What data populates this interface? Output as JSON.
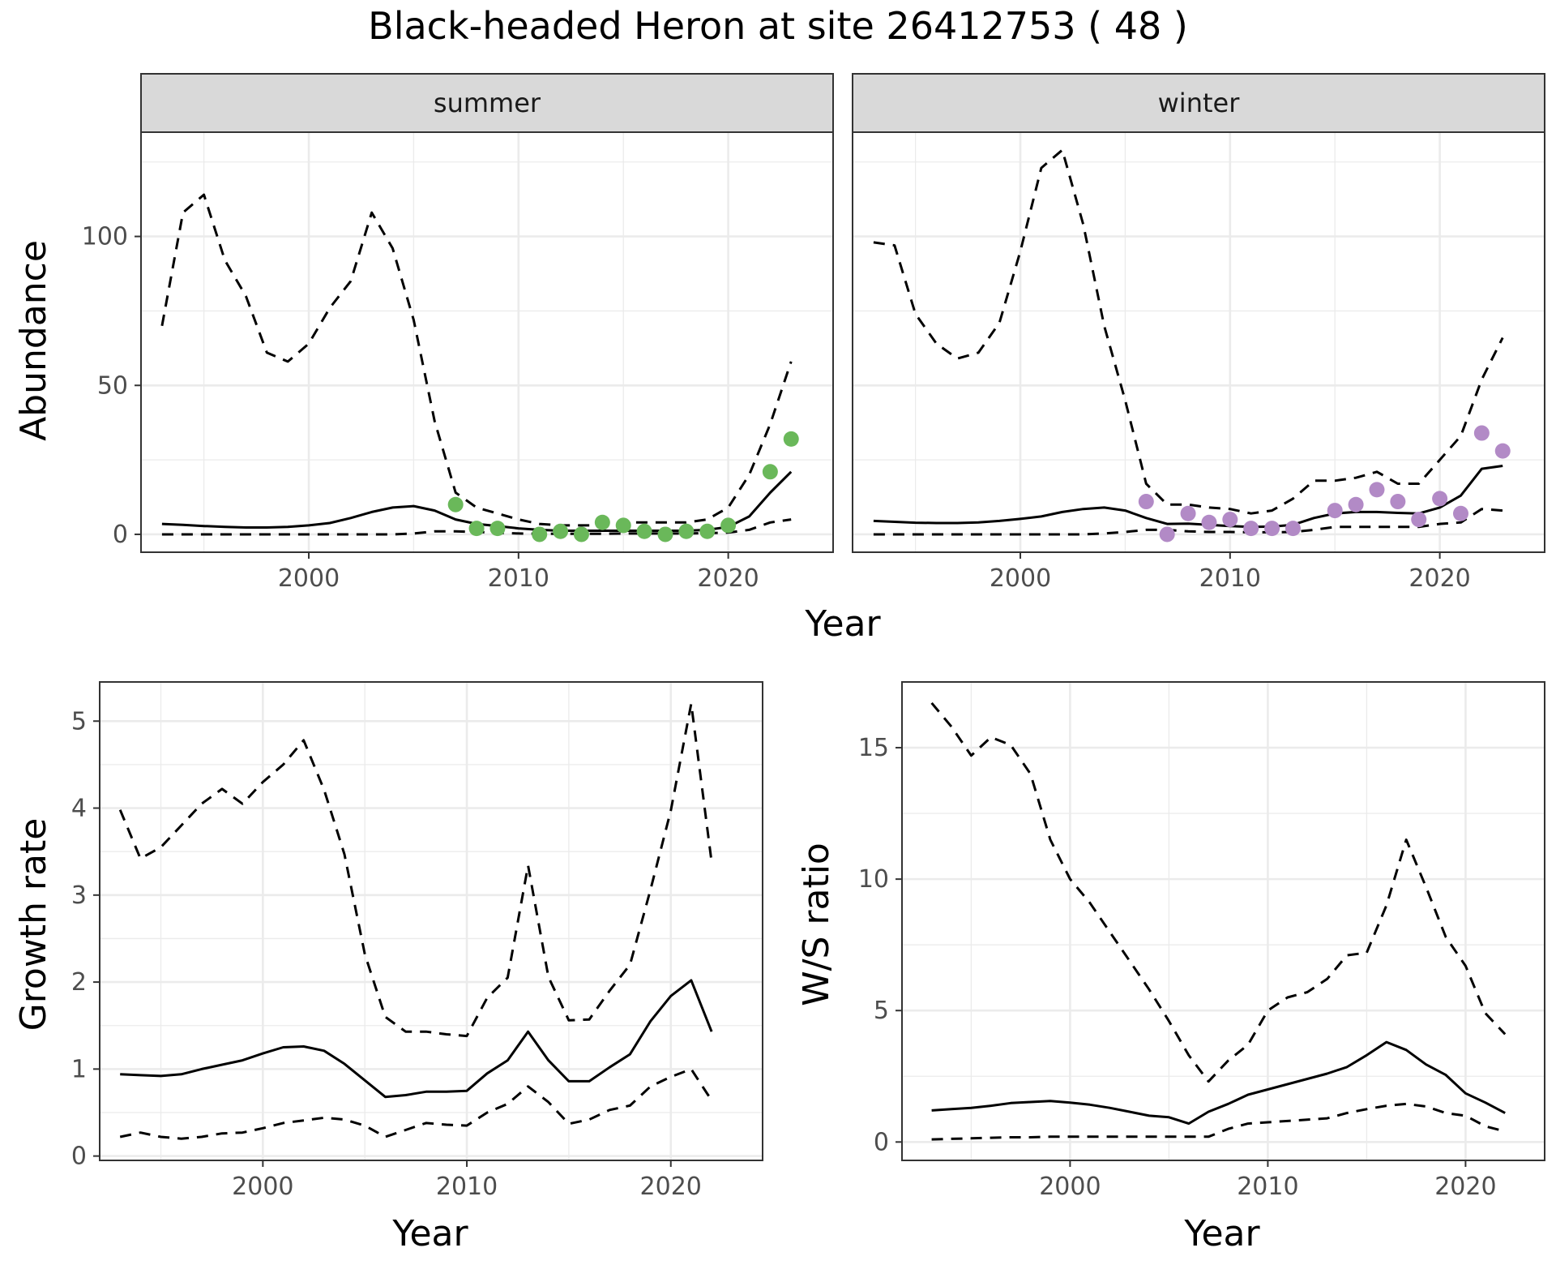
{
  "title": "Black-headed Heron at site 26412753 ( 48 )",
  "colors": {
    "summer_points": "#6ab85a",
    "winter_points": "#b28ac6"
  },
  "chart_data": [
    {
      "id": "abundance",
      "type": "line",
      "facets": [
        "summer",
        "winter"
      ],
      "xlabel": "Year",
      "ylabel": "Abundance",
      "xlim": [
        1992,
        2025
      ],
      "ylim": [
        -6,
        135
      ],
      "x_ticks": [
        2000,
        2010,
        2020
      ],
      "y_ticks": [
        0,
        50,
        100
      ],
      "grid": true,
      "panels": [
        {
          "strip": "summer",
          "x": [
            1993,
            1994,
            1995,
            1996,
            1997,
            1998,
            1999,
            2000,
            2001,
            2002,
            2003,
            2004,
            2005,
            2006,
            2007,
            2008,
            2009,
            2010,
            2011,
            2012,
            2013,
            2014,
            2015,
            2016,
            2017,
            2018,
            2019,
            2020,
            2021,
            2022,
            2023
          ],
          "mean": [
            3.5,
            3.2,
            2.8,
            2.5,
            2.3,
            2.3,
            2.5,
            3,
            3.8,
            5.5,
            7.5,
            9,
            9.5,
            8,
            5,
            3.5,
            2.8,
            2,
            1.5,
            1.2,
            1.2,
            1.2,
            1.2,
            1.2,
            1.2,
            1.2,
            1.5,
            2.5,
            6,
            14,
            21
          ],
          "upper": [
            70,
            108,
            114,
            92,
            80,
            61,
            58,
            64,
            76,
            85,
            108,
            96,
            72,
            38,
            14,
            9,
            7,
            5,
            3.5,
            3,
            3,
            3,
            4,
            4,
            4,
            4,
            5,
            9,
            20,
            37,
            58
          ],
          "lower": [
            0,
            0,
            0,
            0,
            0,
            0,
            0,
            0,
            0,
            0,
            0,
            0,
            0.3,
            1,
            1,
            0.8,
            0.5,
            0.3,
            0.2,
            0.2,
            0.2,
            0.2,
            0.3,
            0.3,
            0.3,
            0.3,
            0.4,
            0.6,
            1.5,
            4,
            5
          ],
          "points_x": [
            2007,
            2008,
            2009,
            2011,
            2012,
            2013,
            2014,
            2015,
            2016,
            2017,
            2018,
            2019,
            2020,
            2022,
            2023
          ],
          "points_y": [
            10,
            2,
            2,
            0,
            1,
            0,
            4,
            3,
            1,
            0,
            1,
            1,
            3,
            21,
            32
          ]
        },
        {
          "strip": "winter",
          "x": [
            1993,
            1994,
            1995,
            1996,
            1997,
            1998,
            1999,
            2000,
            2001,
            2002,
            2003,
            2004,
            2005,
            2006,
            2007,
            2008,
            2009,
            2010,
            2011,
            2012,
            2013,
            2014,
            2015,
            2016,
            2017,
            2018,
            2019,
            2020,
            2021,
            2022,
            2023
          ],
          "mean": [
            4.5,
            4.2,
            3.9,
            3.8,
            3.8,
            4,
            4.5,
            5.2,
            6,
            7.5,
            8.5,
            9,
            8,
            5.5,
            3.5,
            3.6,
            3.2,
            2.8,
            2.5,
            2.6,
            3.2,
            5.5,
            7,
            7.5,
            7.5,
            7.2,
            7,
            9,
            13,
            22,
            23
          ],
          "upper": [
            98,
            97,
            74,
            64,
            59,
            61,
            71,
            95,
            123,
            129,
            104,
            70,
            45,
            17,
            10,
            10,
            9,
            8.5,
            7,
            8,
            12,
            18,
            18,
            19,
            21,
            17,
            17,
            25,
            33,
            52,
            66
          ],
          "lower": [
            0,
            0,
            0,
            0,
            0,
            0,
            0,
            0,
            0,
            0,
            0,
            0.3,
            0.8,
            1.5,
            1.5,
            1,
            0.8,
            0.8,
            0.7,
            0.7,
            0.8,
            1.5,
            2.5,
            2.5,
            2.5,
            2.5,
            2.5,
            3.5,
            4,
            8.5,
            8
          ],
          "points_x": [
            2006,
            2007,
            2008,
            2009,
            2010,
            2011,
            2012,
            2013,
            2015,
            2016,
            2017,
            2018,
            2019,
            2020,
            2021,
            2022,
            2023
          ],
          "points_y": [
            11,
            0,
            7,
            4,
            5,
            2,
            2,
            2,
            8,
            10,
            15,
            11,
            5,
            12,
            7,
            34,
            28
          ]
        }
      ]
    },
    {
      "id": "growth-rate",
      "type": "line",
      "xlabel": "Year",
      "ylabel": "Growth rate",
      "xlim": [
        1992,
        2024.5
      ],
      "ylim": [
        -0.05,
        5.45
      ],
      "x_ticks": [
        2000,
        2010,
        2020
      ],
      "y_ticks": [
        0,
        1,
        2,
        3,
        4,
        5
      ],
      "grid": true,
      "x": [
        1993,
        1994,
        1995,
        1996,
        1997,
        1998,
        1999,
        2000,
        2001,
        2002,
        2003,
        2004,
        2005,
        2006,
        2007,
        2008,
        2009,
        2010,
        2011,
        2012,
        2013,
        2014,
        2015,
        2016,
        2017,
        2018,
        2019,
        2020,
        2021,
        2022
      ],
      "mean": [
        0.94,
        0.93,
        0.92,
        0.94,
        1,
        1.05,
        1.1,
        1.18,
        1.25,
        1.26,
        1.21,
        1.06,
        0.87,
        0.68,
        0.7,
        0.74,
        0.74,
        0.75,
        0.95,
        1.1,
        1.43,
        1.1,
        0.86,
        0.86,
        1.02,
        1.17,
        1.55,
        1.84,
        2.02,
        1.43
      ],
      "upper": [
        3.98,
        3.42,
        3.55,
        3.8,
        4.05,
        4.22,
        4.05,
        4.3,
        4.5,
        4.78,
        4.21,
        3.47,
        2.32,
        1.6,
        1.43,
        1.43,
        1.4,
        1.38,
        1.82,
        2.05,
        3.34,
        2.06,
        1.56,
        1.57,
        1.9,
        2.2,
        3.06,
        3.97,
        5.2,
        3.38
      ],
      "lower": [
        0.22,
        0.27,
        0.22,
        0.2,
        0.22,
        0.26,
        0.27,
        0.32,
        0.38,
        0.41,
        0.44,
        0.42,
        0.35,
        0.22,
        0.3,
        0.38,
        0.36,
        0.35,
        0.5,
        0.6,
        0.8,
        0.62,
        0.37,
        0.42,
        0.53,
        0.58,
        0.8,
        0.91,
        1,
        0.64
      ]
    },
    {
      "id": "ws-ratio",
      "type": "line",
      "xlabel": "Year",
      "ylabel": "W/S ratio",
      "xlim": [
        1991.5,
        2024
      ],
      "ylim": [
        -0.7,
        17.5
      ],
      "x_ticks": [
        2000,
        2010,
        2020
      ],
      "y_ticks": [
        0,
        5,
        10,
        15
      ],
      "grid": true,
      "x": [
        1993,
        1994,
        1995,
        1996,
        1997,
        1998,
        1999,
        2000,
        2001,
        2002,
        2003,
        2004,
        2005,
        2006,
        2007,
        2008,
        2009,
        2010,
        2011,
        2012,
        2013,
        2014,
        2015,
        2016,
        2017,
        2018,
        2019,
        2020,
        2021,
        2022
      ],
      "mean": [
        1.2,
        1.25,
        1.3,
        1.38,
        1.48,
        1.52,
        1.56,
        1.5,
        1.42,
        1.3,
        1.15,
        1,
        0.94,
        0.7,
        1.15,
        1.45,
        1.8,
        2,
        2.2,
        2.4,
        2.6,
        2.85,
        3.3,
        3.8,
        3.5,
        2.95,
        2.55,
        1.85,
        1.5,
        1.1
      ],
      "upper": [
        16.7,
        15.8,
        14.7,
        15.4,
        15.1,
        14,
        11.5,
        10,
        9.1,
        8,
        6.9,
        5.8,
        4.6,
        3.3,
        2.3,
        3.1,
        3.7,
        5,
        5.5,
        5.7,
        6.2,
        7.1,
        7.2,
        9,
        11.5,
        9.7,
        7.8,
        6.7,
        4.9,
        4.1
      ],
      "lower": [
        0.1,
        0.12,
        0.14,
        0.16,
        0.18,
        0.18,
        0.2,
        0.2,
        0.2,
        0.2,
        0.2,
        0.2,
        0.2,
        0.2,
        0.2,
        0.5,
        0.7,
        0.75,
        0.8,
        0.85,
        0.9,
        1.1,
        1.25,
        1.38,
        1.45,
        1.35,
        1.1,
        1,
        0.6,
        0.4
      ]
    }
  ]
}
